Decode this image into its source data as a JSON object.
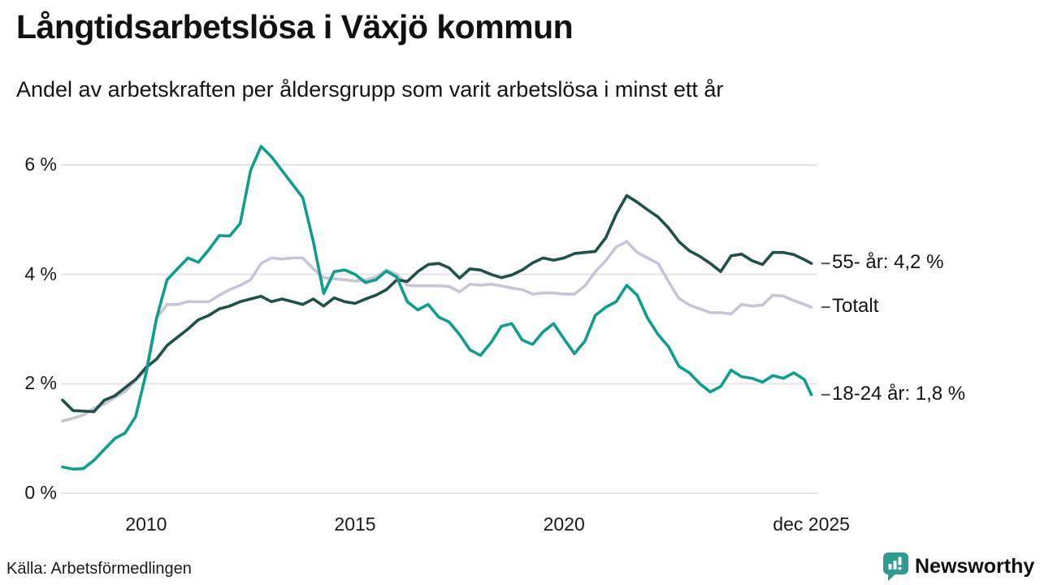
{
  "header": {
    "title": "Långtidsarbetslösa i Växjö kommun",
    "subtitle": "Andel av arbetskraften per åldersgrupp som varit arbetslösa i minst ett år"
  },
  "footer": {
    "source": "Källa: Arbetsförmedlingen",
    "brand": "Newsworthy",
    "brand_icon": "bar-chart-speech-bubble-icon",
    "brand_color": "#2e9b8e"
  },
  "colors": {
    "background": "#ffffff",
    "gridline": "#e4e4ea",
    "text": "#1a1a1a",
    "annotation_dash": "#555555"
  },
  "chart_data": {
    "type": "line",
    "title": "Långtidsarbetslösa i Växjö kommun",
    "subtitle": "Andel av arbetskraften per åldersgrupp som varit arbetslösa i minst ett år",
    "unit": "%",
    "grid": true,
    "ylim": [
      0,
      6.6
    ],
    "x_range_years": [
      2008,
      2026
    ],
    "x_start": 2008,
    "x_step_years": 0.25,
    "x_last": 2025.92,
    "y_ticks": [
      {
        "label": "0 %",
        "value": 0
      },
      {
        "label": "2 %",
        "value": 2
      },
      {
        "label": "4 %",
        "value": 4
      },
      {
        "label": "6 %",
        "value": 6
      }
    ],
    "x_ticks": [
      {
        "label": "2010",
        "t": 2010
      },
      {
        "label": "2015",
        "t": 2015
      },
      {
        "label": "2020",
        "t": 2020
      },
      {
        "label": "dec 2025",
        "t": 2025.92
      }
    ],
    "series": [
      {
        "name": "Totalt",
        "label": "Totalt",
        "color": "#c9c5d5",
        "values": [
          1.32,
          1.37,
          1.43,
          1.55,
          1.63,
          1.75,
          1.86,
          2.06,
          2.25,
          3.2,
          3.45,
          3.45,
          3.5,
          3.5,
          3.5,
          3.62,
          3.72,
          3.8,
          3.9,
          4.2,
          4.3,
          4.28,
          4.3,
          4.3,
          4.1,
          3.94,
          3.92,
          3.9,
          3.88,
          3.9,
          3.95,
          4.08,
          4.0,
          3.8,
          3.79,
          3.79,
          3.79,
          3.78,
          3.68,
          3.82,
          3.8,
          3.82,
          3.79,
          3.75,
          3.72,
          3.64,
          3.66,
          3.66,
          3.64,
          3.64,
          3.79,
          4.05,
          4.25,
          4.5,
          4.6,
          4.4,
          4.3,
          4.2,
          3.87,
          3.56,
          3.44,
          3.37,
          3.3,
          3.3,
          3.28,
          3.45,
          3.42,
          3.44,
          3.62,
          3.6,
          3.52,
          3.45,
          3.4
        ]
      },
      {
        "name": "55- år",
        "label": "55- år: 4,2 %",
        "color": "#215049",
        "values": [
          1.7,
          1.51,
          1.5,
          1.49,
          1.7,
          1.78,
          1.93,
          2.08,
          2.3,
          2.45,
          2.7,
          2.85,
          3.0,
          3.17,
          3.25,
          3.37,
          3.42,
          3.5,
          3.55,
          3.6,
          3.5,
          3.55,
          3.5,
          3.45,
          3.55,
          3.42,
          3.57,
          3.5,
          3.47,
          3.55,
          3.62,
          3.72,
          3.9,
          3.87,
          4.05,
          4.18,
          4.2,
          4.12,
          3.93,
          4.1,
          4.08,
          4.0,
          3.94,
          3.99,
          4.08,
          4.21,
          4.3,
          4.26,
          4.3,
          4.38,
          4.4,
          4.42,
          4.67,
          5.1,
          5.44,
          5.32,
          5.18,
          5.05,
          4.85,
          4.6,
          4.43,
          4.33,
          4.2,
          4.05,
          4.34,
          4.37,
          4.25,
          4.18,
          4.4,
          4.4,
          4.36,
          4.27,
          4.2
        ]
      },
      {
        "name": "18-24 år",
        "label": "18-24 år: 1,8 %",
        "color": "#109e8c",
        "values": [
          0.48,
          0.44,
          0.45,
          0.6,
          0.8,
          1.0,
          1.1,
          1.4,
          2.2,
          3.2,
          3.9,
          4.1,
          4.3,
          4.22,
          4.45,
          4.71,
          4.7,
          4.93,
          5.9,
          6.34,
          6.15,
          5.9,
          5.65,
          5.4,
          4.6,
          3.65,
          4.05,
          4.08,
          4.0,
          3.85,
          3.9,
          4.06,
          3.95,
          3.5,
          3.35,
          3.45,
          3.22,
          3.13,
          2.9,
          2.62,
          2.52,
          2.75,
          3.05,
          3.1,
          2.8,
          2.72,
          2.95,
          3.1,
          2.82,
          2.55,
          2.78,
          3.25,
          3.4,
          3.5,
          3.8,
          3.62,
          3.2,
          2.9,
          2.68,
          2.32,
          2.2,
          2.0,
          1.85,
          1.95,
          2.25,
          2.13,
          2.1,
          2.03,
          2.15,
          2.1,
          2.2,
          2.08,
          1.8
        ]
      }
    ]
  }
}
